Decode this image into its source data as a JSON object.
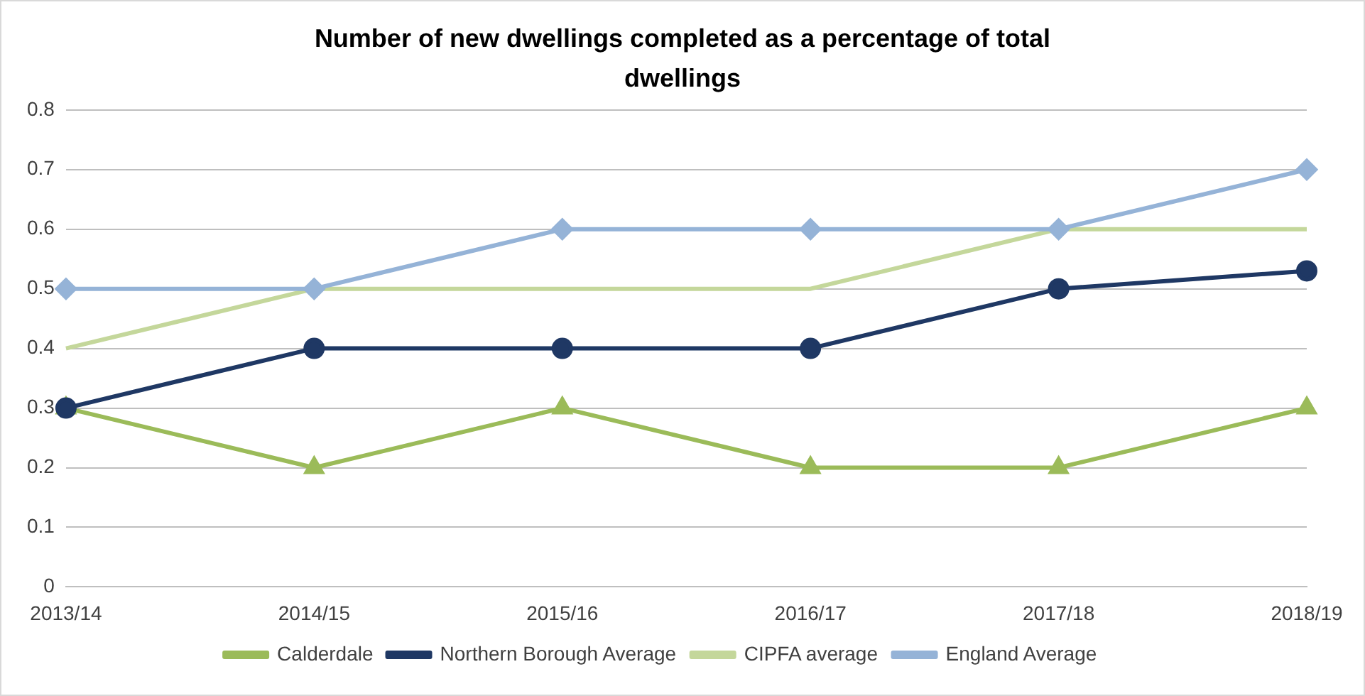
{
  "chart_data": {
    "type": "line",
    "title": "Number of new dwellings completed as a percentage of total dwellings",
    "categories": [
      "2013/14",
      "2014/15",
      "2015/16",
      "2016/17",
      "2017/18",
      "2018/19"
    ],
    "series": [
      {
        "name": "Calderdale",
        "color": "#9bbb59",
        "marker": "triangle",
        "values": [
          0.3,
          0.2,
          0.3,
          0.2,
          0.2,
          0.3
        ]
      },
      {
        "name": "Northern Borough Average",
        "color": "#1f3864",
        "marker": "circle",
        "values": [
          0.3,
          0.4,
          0.4,
          0.4,
          0.5,
          0.53
        ]
      },
      {
        "name": "CIPFA average",
        "color": "#c4d79b",
        "marker": "none",
        "values": [
          0.4,
          0.5,
          0.5,
          0.5,
          0.6,
          0.6
        ]
      },
      {
        "name": "England Average",
        "color": "#95b3d7",
        "marker": "diamond",
        "values": [
          0.5,
          0.5,
          0.6,
          0.6,
          0.6,
          0.7
        ]
      }
    ],
    "ylim": [
      0,
      0.8
    ],
    "yticks": [
      0,
      0.1,
      0.2,
      0.3,
      0.4,
      0.5,
      0.6,
      0.7,
      0.8
    ],
    "grid": "y",
    "legend": "bottom"
  }
}
